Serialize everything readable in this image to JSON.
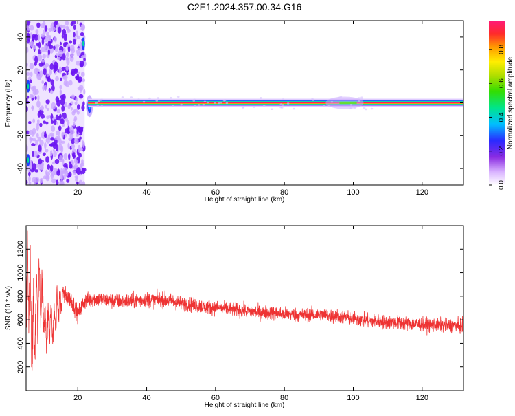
{
  "title": "C2E1.2024.357.00.34.G16",
  "colors": {
    "snr_line": "#ee3333",
    "carrier": "#ff1a5e",
    "speckle": "#6a14f2",
    "speckle_light": "#c9a6ff"
  },
  "chart_data": [
    {
      "type": "heatmap",
      "title": "",
      "xlabel": "Height of straight line (km)",
      "ylabel": "Frequency (Hz)",
      "xlim": [
        5,
        132
      ],
      "ylim": [
        -50,
        50
      ],
      "xticks": [
        "20",
        "40",
        "60",
        "80",
        "100",
        "120"
      ],
      "xtick_values": [
        20,
        40,
        60,
        80,
        100,
        120
      ],
      "yticks": [
        "-40",
        "-20",
        "0",
        "20",
        "40"
      ],
      "ytick_values": [
        -40,
        -20,
        0,
        20,
        40
      ],
      "colorbar": {
        "label": "Normalized spectral amplitude",
        "range": [
          0,
          0.97
        ],
        "ticks": [
          "0.0",
          "0.2",
          "0.4",
          "0.6",
          "0.8"
        ],
        "tick_values": [
          0.0,
          0.2,
          0.4,
          0.6,
          0.8
        ],
        "colormap": "rainbow (white-purple-blue-cyan-green-yellow-orange-red-pink)"
      },
      "features": {
        "noise_region_km": [
          5,
          22
        ],
        "carrier_start_km": 23,
        "carrier_frequency_hz": 0,
        "carrier_amplitude": 0.97,
        "secondary_bump_km": [
          92,
          103
        ]
      }
    },
    {
      "type": "line",
      "title": "",
      "xlabel": "Height of straight line (km)",
      "ylabel": "SNR (10 * v/v)",
      "xlim": [
        5,
        132
      ],
      "ylim": [
        0,
        1400
      ],
      "xticks": [
        "20",
        "40",
        "60",
        "80",
        "100",
        "120"
      ],
      "xtick_values": [
        20,
        40,
        60,
        80,
        100,
        120
      ],
      "yticks": [
        "200",
        "400",
        "600",
        "800",
        "1000",
        "1200"
      ],
      "ytick_values": [
        200,
        400,
        600,
        800,
        1000,
        1200
      ],
      "series": [
        {
          "color": "#ee3333",
          "x": [
            5,
            6,
            7,
            8,
            9,
            10,
            11,
            12,
            13,
            14,
            15,
            16,
            18,
            20,
            22,
            25,
            30,
            35,
            40,
            45,
            50,
            55,
            60,
            65,
            70,
            75,
            80,
            85,
            90,
            95,
            100,
            105,
            110,
            115,
            120,
            125,
            130,
            132
          ],
          "y": [
            700,
            900,
            400,
            700,
            900,
            700,
            500,
            600,
            550,
            700,
            750,
            800,
            780,
            650,
            760,
            780,
            760,
            760,
            770,
            770,
            740,
            720,
            700,
            690,
            670,
            660,
            650,
            640,
            640,
            630,
            610,
            590,
            580,
            570,
            560,
            555,
            550,
            545
          ],
          "spread": [
            550,
            450,
            400,
            350,
            300,
            260,
            220,
            200,
            180,
            160,
            150,
            140,
            130,
            120,
            120,
            110,
            110,
            110,
            110,
            110,
            105,
            105,
            100,
            100,
            100,
            100,
            100,
            100,
            100,
            100,
            100,
            100,
            100,
            100,
            100,
            100,
            100,
            100
          ]
        }
      ]
    }
  ]
}
